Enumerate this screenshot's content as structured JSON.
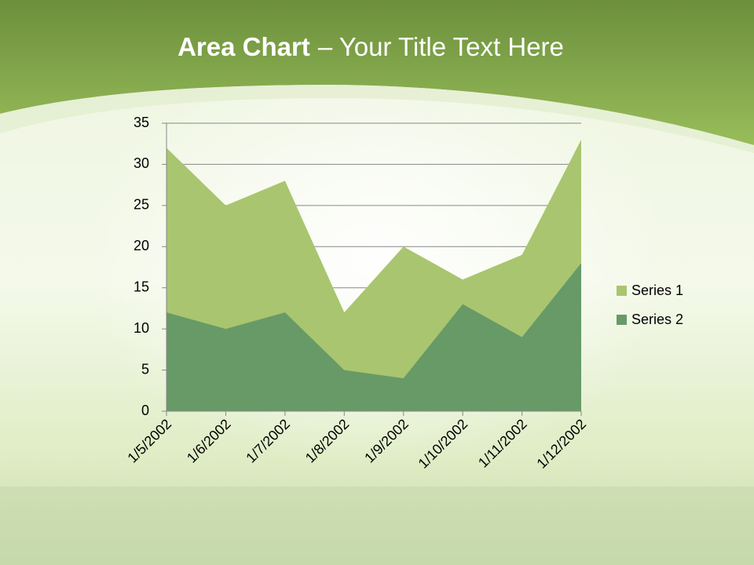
{
  "chart_data": {
    "type": "area",
    "title": {
      "bold": "Area Chart",
      "regular": "– Your Title Text Here"
    },
    "categories": [
      "1/5/2002",
      "1/6/2002",
      "1/7/2002",
      "1/8/2002",
      "1/9/2002",
      "1/10/2002",
      "1/11/2002",
      "1/12/2002"
    ],
    "series": [
      {
        "name": "Series 1",
        "color": "#a9c56f",
        "values": [
          32,
          25,
          28,
          12,
          20,
          16,
          19,
          33
        ]
      },
      {
        "name": "Series 2",
        "color": "#679a67",
        "values": [
          12,
          10,
          12,
          5,
          4,
          13,
          9,
          18
        ]
      }
    ],
    "ylim": [
      0,
      35
    ],
    "yticks": [
      0,
      5,
      10,
      15,
      20,
      25,
      30,
      35
    ],
    "grid": true,
    "legend": "right"
  }
}
